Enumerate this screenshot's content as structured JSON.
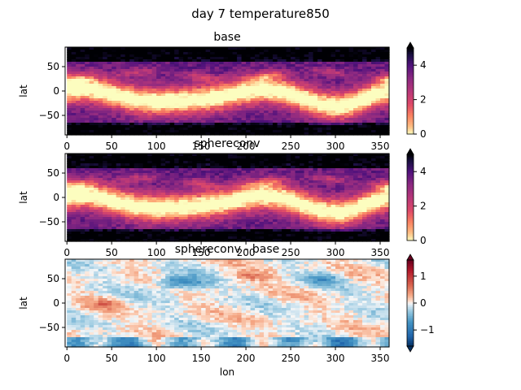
{
  "figure": {
    "suptitle": "day 7 temperature850"
  },
  "chart_data": [
    {
      "type": "heatmap",
      "title": "base",
      "xlabel": "",
      "ylabel": "lat",
      "xlim": [
        -2,
        360
      ],
      "ylim": [
        -90,
        90
      ],
      "xticks": [
        0,
        50,
        100,
        150,
        200,
        250,
        300,
        350
      ],
      "yticks": [
        -50,
        0,
        50
      ],
      "colormap": "magma_r",
      "colorbar": {
        "ticks": [
          0,
          2,
          4
        ],
        "range": [
          0,
          5
        ],
        "extend": "max"
      }
    },
    {
      "type": "heatmap",
      "title": "sphereconv",
      "xlabel": "",
      "ylabel": "lat",
      "xlim": [
        -2,
        360
      ],
      "ylim": [
        -90,
        90
      ],
      "xticks": [
        0,
        50,
        100,
        150,
        200,
        250,
        300,
        350
      ],
      "yticks": [
        -50,
        0,
        50
      ],
      "colormap": "magma_r",
      "colorbar": {
        "ticks": [
          0,
          2,
          4
        ],
        "range": [
          0,
          5
        ],
        "extend": "max"
      }
    },
    {
      "type": "heatmap",
      "title": "sphereconv - base",
      "xlabel": "lon",
      "ylabel": "lat",
      "xlim": [
        -2,
        360
      ],
      "ylim": [
        -90,
        90
      ],
      "xticks": [
        0,
        50,
        100,
        150,
        200,
        250,
        300,
        350
      ],
      "yticks": [
        -50,
        0,
        50
      ],
      "colormap": "RdBu_r",
      "colorbar": {
        "ticks": [
          -1,
          0,
          1
        ],
        "range": [
          -1.6,
          1.6
        ],
        "extend": "both"
      }
    }
  ]
}
